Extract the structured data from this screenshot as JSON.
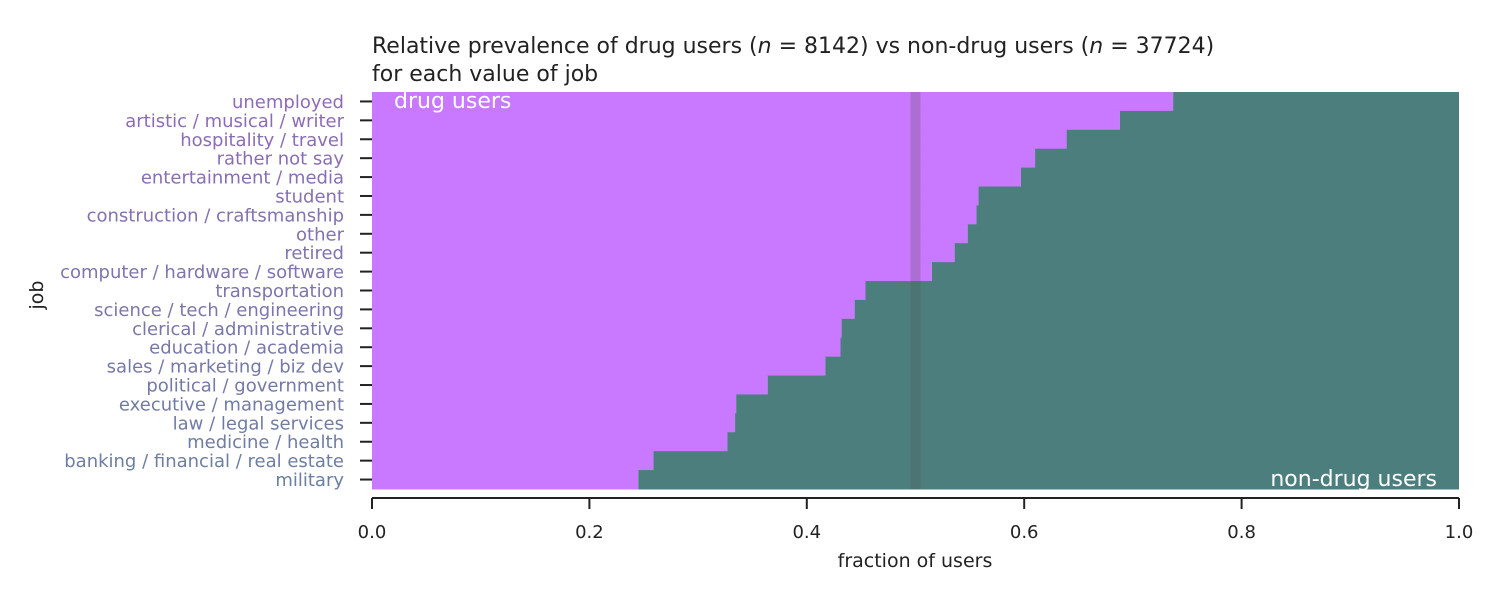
{
  "chart_data": {
    "type": "bar",
    "orientation": "horizontal-stacked-fraction",
    "title_line1_parts": [
      "Relative prevalence of drug users (",
      "n",
      " = 8142) vs non-drug users (",
      "n",
      " = 37724)"
    ],
    "title_line2": "for each value of job",
    "xlabel": "fraction of users",
    "ylabel": "job",
    "xlim": [
      0.0,
      1.0
    ],
    "xticks": [
      "0.0",
      "0.2",
      "0.4",
      "0.6",
      "0.8",
      "1.0"
    ],
    "reference_line": 0.5,
    "categories": [
      "unemployed",
      "artistic / musical / writer",
      "hospitality / travel",
      "rather not say",
      "entertainment / media",
      "student",
      "construction / craftsmanship",
      "other",
      "retired",
      "computer / hardware / software",
      "transportation",
      "science / tech / engineering",
      "clerical / administrative",
      "education / academia",
      "sales / marketing / biz dev",
      "political / government",
      "executive / management",
      "law / legal services",
      "medicine / health",
      "banking / financial / real estate",
      "military"
    ],
    "series": [
      {
        "name": "drug users",
        "values": [
          0.737,
          0.688,
          0.639,
          0.61,
          0.597,
          0.558,
          0.556,
          0.548,
          0.536,
          0.515,
          0.454,
          0.444,
          0.432,
          0.431,
          0.417,
          0.364,
          0.335,
          0.334,
          0.327,
          0.259,
          0.245
        ]
      },
      {
        "name": "non-drug users",
        "values": [
          0.263,
          0.312,
          0.361,
          0.39,
          0.403,
          0.442,
          0.444,
          0.452,
          0.464,
          0.485,
          0.546,
          0.556,
          0.568,
          0.569,
          0.583,
          0.636,
          0.665,
          0.666,
          0.673,
          0.741,
          0.755
        ]
      }
    ],
    "colors": {
      "drug_users": "#c879ff",
      "non_drug_users": "#4c7e7e",
      "reference_line": "#555555",
      "label_top": "#8f6bb8",
      "label_bottom": "#6b7fa0",
      "axis": "#222222"
    }
  }
}
